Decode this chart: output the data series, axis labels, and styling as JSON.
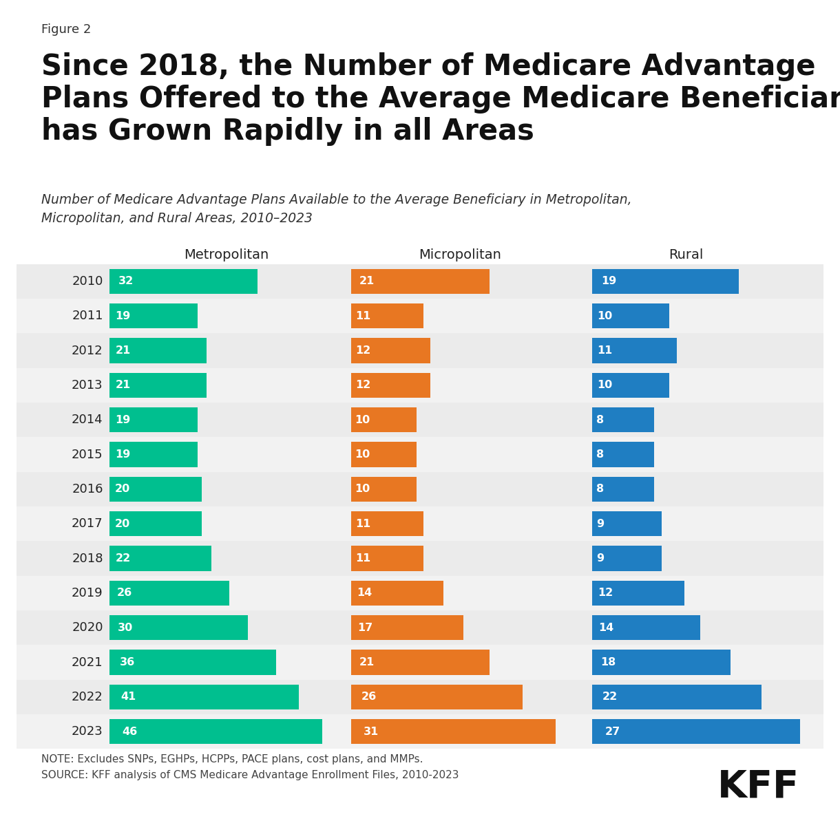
{
  "figure_label": "Figure 2",
  "title": "Since 2018, the Number of Medicare Advantage\nPlans Offered to the Average Medicare Beneficiary\nhas Grown Rapidly in all Areas",
  "subtitle": "Number of Medicare Advantage Plans Available to the Average Beneficiary in Metropolitan,\nMicropolitan, and Rural Areas, 2010–2023",
  "years": [
    2010,
    2011,
    2012,
    2013,
    2014,
    2015,
    2016,
    2017,
    2018,
    2019,
    2020,
    2021,
    2022,
    2023
  ],
  "metropolitan": [
    32,
    19,
    21,
    21,
    19,
    19,
    20,
    20,
    22,
    26,
    30,
    36,
    41,
    46
  ],
  "micropolitan": [
    21,
    11,
    12,
    12,
    10,
    10,
    10,
    11,
    11,
    14,
    17,
    21,
    26,
    31
  ],
  "rural": [
    19,
    10,
    11,
    10,
    8,
    8,
    8,
    9,
    9,
    12,
    14,
    18,
    22,
    27
  ],
  "metro_color": "#00BF8F",
  "micro_color": "#E87722",
  "rural_color": "#1F7EC2",
  "metro_label": "Metropolitan",
  "micro_label": "Micropolitan",
  "rural_label": "Rural",
  "note": "NOTE: Excludes SNPs, EGHPs, HCPPs, PACE plans, cost plans, and MMPs.\nSOURCE: KFF analysis of CMS Medicare Advantage Enrollment Files, 2010-2023",
  "kff_label": "KFF",
  "background_color": "#FFFFFF",
  "row_even_color": "#EBEBEB",
  "row_odd_color": "#F2F2F2",
  "bar_height": 0.72,
  "value_fontsize": 11.5,
  "year_fontsize": 13,
  "col_label_fontsize": 14,
  "title_fontsize": 30,
  "subtitle_fontsize": 13.5,
  "figure_label_fontsize": 13,
  "note_fontsize": 11
}
